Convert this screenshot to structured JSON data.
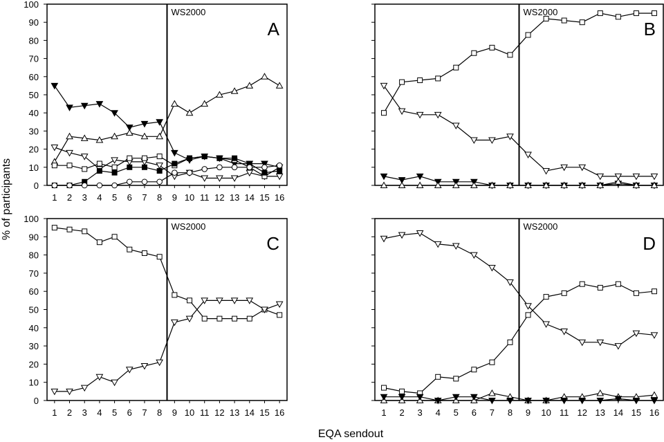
{
  "figure": {
    "ylabel": "% of participants",
    "xlabel": "EQA sendout"
  },
  "chart_data": [
    {
      "type": "line",
      "panel_label": "A",
      "divider_label": "WS2000",
      "divider_after_x": 8.5,
      "x": [
        1,
        2,
        3,
        4,
        5,
        6,
        7,
        8,
        9,
        10,
        11,
        12,
        13,
        14,
        15,
        16
      ],
      "ylim": [
        0,
        100
      ],
      "yticks": [
        0,
        10,
        20,
        30,
        40,
        50,
        60,
        70,
        80,
        90,
        100
      ],
      "show_y_tick_labels": true,
      "show_x_tick_labels": true,
      "series": [
        {
          "marker": "triangle-down-filled",
          "values": [
            55,
            43,
            44,
            45,
            40,
            32,
            34,
            35,
            18,
            14,
            16,
            15,
            12,
            12,
            12,
            10
          ]
        },
        {
          "marker": "triangle-up-open",
          "values": [
            13,
            27,
            26,
            25,
            27,
            29,
            27,
            27,
            45,
            40,
            45,
            50,
            52,
            55,
            60,
            55
          ]
        },
        {
          "marker": "triangle-down-open",
          "values": [
            21,
            18,
            16,
            9,
            14,
            13,
            13,
            11,
            5,
            7,
            4,
            4,
            4,
            7,
            5,
            5
          ]
        },
        {
          "marker": "square-open",
          "values": [
            11,
            11,
            9,
            12,
            10,
            15,
            15,
            16,
            11,
            15,
            16,
            15,
            14,
            10,
            5,
            10
          ]
        },
        {
          "marker": "square-filled",
          "values": [
            0,
            0,
            2,
            8,
            7,
            10,
            10,
            8,
            12,
            15,
            16,
            15,
            15,
            12,
            7,
            8
          ]
        },
        {
          "marker": "circle-open",
          "values": [
            0,
            0,
            0,
            0,
            0,
            2,
            2,
            2,
            7,
            7,
            9,
            10,
            10,
            10,
            10,
            11
          ]
        }
      ]
    },
    {
      "type": "line",
      "panel_label": "B",
      "divider_label": "WS2000",
      "divider_after_x": 8.5,
      "x": [
        1,
        2,
        3,
        4,
        5,
        6,
        7,
        8,
        9,
        10,
        11,
        12,
        13,
        14,
        15,
        16
      ],
      "ylim": [
        0,
        100
      ],
      "yticks": [
        0,
        10,
        20,
        30,
        40,
        50,
        60,
        70,
        80,
        90,
        100
      ],
      "show_y_tick_labels": false,
      "show_x_tick_labels": false,
      "series": [
        {
          "marker": "square-open",
          "values": [
            40,
            57,
            58,
            59,
            65,
            73,
            76,
            72,
            83,
            92,
            91,
            90,
            95,
            93,
            95,
            95
          ]
        },
        {
          "marker": "triangle-down-open",
          "values": [
            55,
            41,
            39,
            39,
            33,
            25,
            25,
            27,
            17,
            8,
            10,
            10,
            5,
            5,
            5,
            5
          ]
        },
        {
          "marker": "triangle-down-filled",
          "values": [
            5,
            3,
            5,
            2,
            2,
            2,
            0,
            0,
            0,
            0,
            0,
            0,
            0,
            1,
            0,
            0
          ]
        },
        {
          "marker": "triangle-up-open",
          "values": [
            0,
            0,
            0,
            0,
            0,
            0,
            0,
            0,
            0,
            0,
            0,
            0,
            0,
            2,
            0,
            0
          ]
        }
      ]
    },
    {
      "type": "line",
      "panel_label": "C",
      "divider_label": "WS2000",
      "divider_after_x": 8.5,
      "x": [
        1,
        2,
        3,
        4,
        5,
        6,
        7,
        8,
        9,
        10,
        11,
        12,
        13,
        14,
        15,
        16
      ],
      "ylim": [
        0,
        100
      ],
      "yticks": [
        0,
        10,
        20,
        30,
        40,
        50,
        60,
        70,
        80,
        90,
        100
      ],
      "show_y_tick_labels": true,
      "show_x_tick_labels": true,
      "series": [
        {
          "marker": "square-open",
          "values": [
            95,
            94,
            93,
            87,
            90,
            83,
            81,
            79,
            58,
            55,
            45,
            45,
            45,
            45,
            50,
            47
          ]
        },
        {
          "marker": "triangle-down-open",
          "values": [
            5,
            5,
            7,
            13,
            10,
            17,
            19,
            21,
            43,
            45,
            55,
            55,
            55,
            55,
            50,
            53
          ]
        }
      ]
    },
    {
      "type": "line",
      "panel_label": "D",
      "divider_label": "WS2000",
      "divider_after_x": 8.5,
      "x": [
        1,
        2,
        3,
        4,
        5,
        6,
        7,
        8,
        9,
        10,
        11,
        12,
        13,
        14,
        15,
        16
      ],
      "ylim": [
        0,
        100
      ],
      "yticks": [
        0,
        10,
        20,
        30,
        40,
        50,
        60,
        70,
        80,
        90,
        100
      ],
      "show_y_tick_labels": false,
      "show_x_tick_labels": true,
      "series": [
        {
          "marker": "triangle-down-open",
          "values": [
            89,
            91,
            92,
            86,
            85,
            80,
            73,
            65,
            52,
            42,
            38,
            32,
            32,
            30,
            37,
            36
          ]
        },
        {
          "marker": "square-open",
          "values": [
            7,
            5,
            4,
            13,
            12,
            17,
            21,
            32,
            47,
            57,
            59,
            64,
            62,
            64,
            59,
            60
          ]
        },
        {
          "marker": "triangle-up-open",
          "values": [
            0,
            0,
            0,
            0,
            0,
            0,
            4,
            2,
            0,
            0,
            2,
            2,
            4,
            2,
            2,
            3
          ]
        },
        {
          "marker": "triangle-down-filled",
          "values": [
            2,
            2,
            2,
            0,
            2,
            2,
            0,
            0,
            0,
            0,
            0,
            0,
            0,
            1,
            0,
            0
          ]
        }
      ]
    }
  ]
}
